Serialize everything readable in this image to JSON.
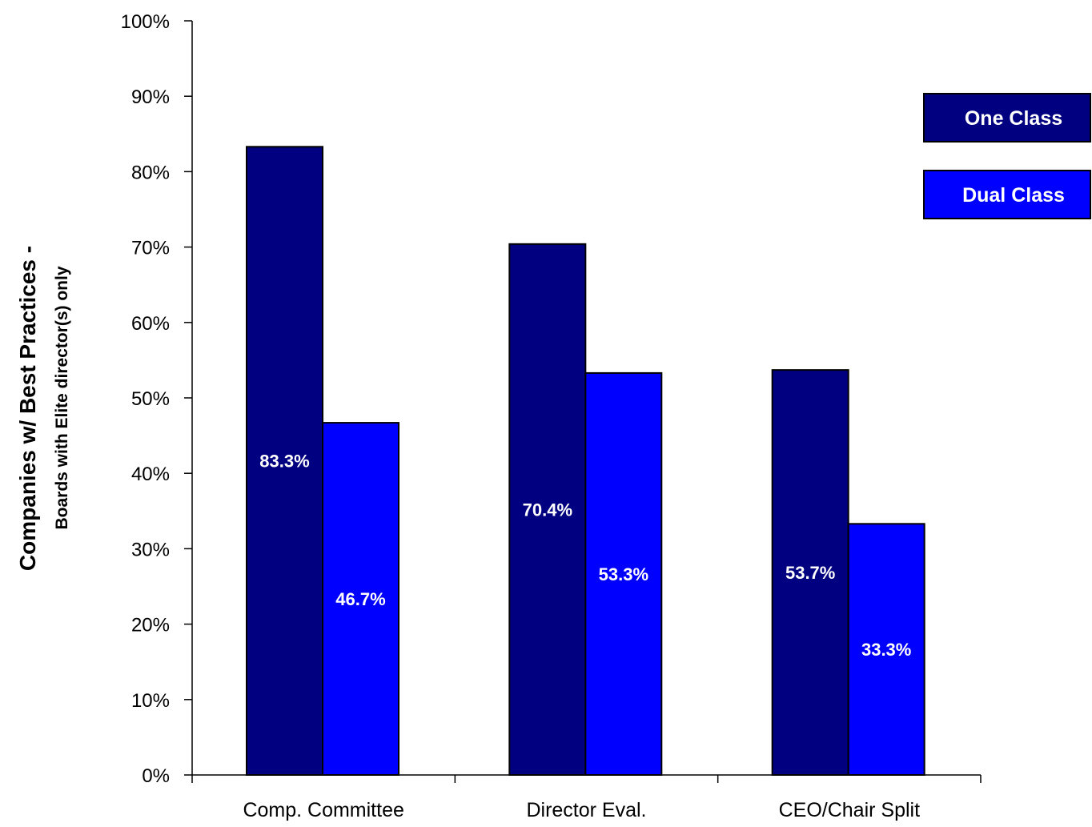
{
  "chart_data": {
    "type": "bar",
    "title": "",
    "ylabel": "Companies w/ Best Practices -",
    "ylabel_sub": "Boards with Elite director(s) only",
    "xlabel": "",
    "categories": [
      "Comp. Committee",
      "Director Eval.",
      "CEO/Chair Split"
    ],
    "series": [
      {
        "name": "One Class",
        "color": "#000080",
        "values": [
          83.3,
          70.4,
          53.7
        ],
        "labels": [
          "83.3%",
          "70.4%",
          "53.7%"
        ]
      },
      {
        "name": "Dual Class",
        "color": "#0000ff",
        "values": [
          46.7,
          53.3,
          33.3
        ],
        "labels": [
          "46.7%",
          "53.3%",
          "33.3%"
        ]
      }
    ],
    "ylim": [
      0,
      100
    ],
    "yticks": [
      0,
      10,
      20,
      30,
      40,
      50,
      60,
      70,
      80,
      90,
      100
    ],
    "ytick_labels": [
      "0%",
      "10%",
      "20%",
      "30%",
      "40%",
      "50%",
      "60%",
      "70%",
      "80%",
      "90%",
      "100%"
    ],
    "grid": false,
    "legend_position": "right"
  }
}
